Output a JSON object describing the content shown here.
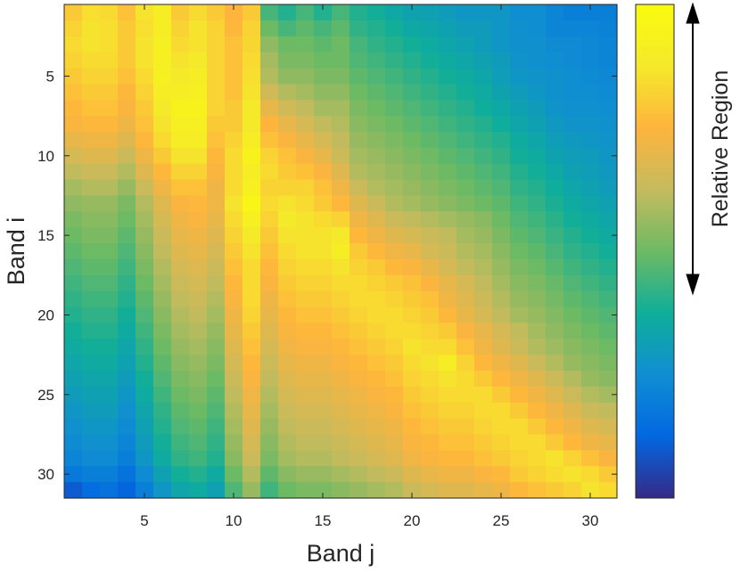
{
  "chart_data": {
    "type": "heatmap",
    "title": "",
    "xlabel": "Band j",
    "ylabel": "Band i",
    "rows": 31,
    "cols": 31,
    "x_ticks": [
      5,
      10,
      15,
      20,
      25,
      30
    ],
    "y_ticks": [
      5,
      10,
      15,
      20,
      25,
      30
    ],
    "colorbar_label": "Relative Region",
    "colorbar_ticks": "none",
    "colormap": "parula",
    "colormap_stops": [
      "#352a87",
      "#0268e1",
      "#108ed2",
      "#0fae99",
      "#6dba64",
      "#c4bb5e",
      "#feb43d",
      "#f5e92b",
      "#f9fb0e"
    ],
    "values_note_scale": "relative 0-1",
    "values": [
      [
        0.8,
        0.85,
        0.84,
        0.78,
        0.86,
        0.9,
        0.8,
        0.84,
        0.8,
        0.75,
        0.8,
        0.45,
        0.4,
        0.45,
        0.4,
        0.45,
        0.4,
        0.38,
        0.35,
        0.33,
        0.32,
        0.3,
        0.28,
        0.28,
        0.28,
        0.25,
        0.25,
        0.22,
        0.2,
        0.2,
        0.2
      ],
      [
        0.82,
        0.86,
        0.85,
        0.8,
        0.85,
        0.9,
        0.82,
        0.86,
        0.82,
        0.76,
        0.82,
        0.5,
        0.45,
        0.48,
        0.45,
        0.48,
        0.42,
        0.4,
        0.38,
        0.35,
        0.34,
        0.32,
        0.3,
        0.3,
        0.28,
        0.26,
        0.25,
        0.22,
        0.22,
        0.22,
        0.21
      ],
      [
        0.84,
        0.86,
        0.85,
        0.8,
        0.86,
        0.92,
        0.84,
        0.86,
        0.82,
        0.78,
        0.83,
        0.55,
        0.5,
        0.5,
        0.48,
        0.5,
        0.45,
        0.42,
        0.4,
        0.38,
        0.36,
        0.34,
        0.32,
        0.3,
        0.28,
        0.26,
        0.26,
        0.24,
        0.24,
        0.23,
        0.22
      ],
      [
        0.82,
        0.84,
        0.84,
        0.8,
        0.86,
        0.92,
        0.86,
        0.88,
        0.82,
        0.78,
        0.84,
        0.58,
        0.52,
        0.52,
        0.5,
        0.5,
        0.46,
        0.44,
        0.42,
        0.4,
        0.38,
        0.36,
        0.34,
        0.32,
        0.3,
        0.27,
        0.26,
        0.25,
        0.24,
        0.23,
        0.22
      ],
      [
        0.8,
        0.82,
        0.82,
        0.78,
        0.84,
        0.92,
        0.88,
        0.9,
        0.82,
        0.78,
        0.85,
        0.6,
        0.55,
        0.55,
        0.52,
        0.52,
        0.48,
        0.46,
        0.44,
        0.42,
        0.4,
        0.38,
        0.36,
        0.34,
        0.31,
        0.28,
        0.27,
        0.26,
        0.25,
        0.24,
        0.23
      ],
      [
        0.78,
        0.8,
        0.8,
        0.76,
        0.82,
        0.9,
        0.9,
        0.92,
        0.82,
        0.78,
        0.86,
        0.65,
        0.6,
        0.58,
        0.55,
        0.55,
        0.5,
        0.48,
        0.46,
        0.44,
        0.42,
        0.4,
        0.38,
        0.36,
        0.33,
        0.3,
        0.28,
        0.26,
        0.25,
        0.25,
        0.24
      ],
      [
        0.76,
        0.78,
        0.78,
        0.74,
        0.8,
        0.88,
        0.94,
        0.94,
        0.82,
        0.8,
        0.88,
        0.7,
        0.65,
        0.62,
        0.58,
        0.58,
        0.52,
        0.5,
        0.48,
        0.46,
        0.44,
        0.42,
        0.4,
        0.37,
        0.35,
        0.32,
        0.3,
        0.27,
        0.26,
        0.26,
        0.25
      ],
      [
        0.74,
        0.76,
        0.76,
        0.72,
        0.78,
        0.86,
        0.92,
        0.92,
        0.8,
        0.8,
        0.88,
        0.75,
        0.7,
        0.66,
        0.62,
        0.6,
        0.54,
        0.52,
        0.5,
        0.48,
        0.46,
        0.44,
        0.42,
        0.4,
        0.37,
        0.34,
        0.32,
        0.29,
        0.27,
        0.27,
        0.26
      ],
      [
        0.7,
        0.72,
        0.72,
        0.68,
        0.76,
        0.84,
        0.9,
        0.9,
        0.78,
        0.82,
        0.9,
        0.78,
        0.74,
        0.7,
        0.66,
        0.62,
        0.56,
        0.54,
        0.52,
        0.5,
        0.48,
        0.46,
        0.44,
        0.42,
        0.4,
        0.36,
        0.34,
        0.31,
        0.29,
        0.28,
        0.27
      ],
      [
        0.66,
        0.68,
        0.68,
        0.64,
        0.72,
        0.8,
        0.86,
        0.86,
        0.76,
        0.84,
        0.94,
        0.82,
        0.78,
        0.74,
        0.7,
        0.64,
        0.58,
        0.56,
        0.54,
        0.52,
        0.5,
        0.48,
        0.46,
        0.44,
        0.42,
        0.38,
        0.36,
        0.33,
        0.31,
        0.3,
        0.28
      ],
      [
        0.62,
        0.64,
        0.64,
        0.6,
        0.68,
        0.76,
        0.82,
        0.82,
        0.74,
        0.84,
        0.9,
        0.84,
        0.8,
        0.78,
        0.74,
        0.68,
        0.6,
        0.58,
        0.56,
        0.54,
        0.52,
        0.5,
        0.48,
        0.46,
        0.44,
        0.4,
        0.38,
        0.35,
        0.32,
        0.31,
        0.29
      ],
      [
        0.58,
        0.6,
        0.6,
        0.56,
        0.64,
        0.72,
        0.78,
        0.78,
        0.72,
        0.84,
        0.92,
        0.82,
        0.82,
        0.82,
        0.78,
        0.72,
        0.64,
        0.6,
        0.58,
        0.56,
        0.54,
        0.52,
        0.5,
        0.48,
        0.46,
        0.42,
        0.4,
        0.37,
        0.34,
        0.32,
        0.3
      ],
      [
        0.55,
        0.56,
        0.56,
        0.52,
        0.6,
        0.68,
        0.74,
        0.76,
        0.72,
        0.86,
        0.96,
        0.84,
        0.86,
        0.84,
        0.8,
        0.76,
        0.68,
        0.64,
        0.6,
        0.58,
        0.56,
        0.54,
        0.52,
        0.5,
        0.48,
        0.44,
        0.42,
        0.39,
        0.36,
        0.34,
        0.32
      ],
      [
        0.52,
        0.54,
        0.54,
        0.5,
        0.58,
        0.66,
        0.72,
        0.74,
        0.7,
        0.84,
        0.92,
        0.82,
        0.88,
        0.86,
        0.84,
        0.82,
        0.72,
        0.68,
        0.64,
        0.62,
        0.6,
        0.58,
        0.56,
        0.54,
        0.5,
        0.46,
        0.44,
        0.41,
        0.38,
        0.36,
        0.34
      ],
      [
        0.5,
        0.52,
        0.52,
        0.48,
        0.56,
        0.64,
        0.7,
        0.72,
        0.68,
        0.82,
        0.88,
        0.8,
        0.86,
        0.86,
        0.86,
        0.88,
        0.76,
        0.72,
        0.68,
        0.66,
        0.64,
        0.62,
        0.58,
        0.56,
        0.52,
        0.48,
        0.46,
        0.43,
        0.4,
        0.38,
        0.36
      ],
      [
        0.48,
        0.5,
        0.5,
        0.46,
        0.54,
        0.62,
        0.68,
        0.7,
        0.66,
        0.8,
        0.86,
        0.78,
        0.84,
        0.86,
        0.86,
        0.9,
        0.8,
        0.76,
        0.72,
        0.7,
        0.66,
        0.64,
        0.6,
        0.58,
        0.54,
        0.5,
        0.48,
        0.45,
        0.42,
        0.4,
        0.38
      ],
      [
        0.46,
        0.48,
        0.48,
        0.44,
        0.52,
        0.6,
        0.66,
        0.68,
        0.64,
        0.78,
        0.84,
        0.76,
        0.82,
        0.84,
        0.84,
        0.86,
        0.82,
        0.8,
        0.76,
        0.74,
        0.7,
        0.66,
        0.62,
        0.6,
        0.56,
        0.52,
        0.5,
        0.47,
        0.44,
        0.42,
        0.4
      ],
      [
        0.44,
        0.46,
        0.46,
        0.42,
        0.5,
        0.58,
        0.64,
        0.66,
        0.62,
        0.76,
        0.84,
        0.74,
        0.8,
        0.82,
        0.82,
        0.84,
        0.84,
        0.82,
        0.8,
        0.78,
        0.74,
        0.7,
        0.66,
        0.62,
        0.58,
        0.54,
        0.52,
        0.49,
        0.46,
        0.44,
        0.42
      ],
      [
        0.42,
        0.44,
        0.44,
        0.4,
        0.48,
        0.56,
        0.62,
        0.64,
        0.6,
        0.74,
        0.84,
        0.72,
        0.78,
        0.8,
        0.8,
        0.82,
        0.84,
        0.84,
        0.82,
        0.8,
        0.78,
        0.72,
        0.68,
        0.64,
        0.6,
        0.56,
        0.54,
        0.51,
        0.48,
        0.46,
        0.44
      ],
      [
        0.4,
        0.42,
        0.42,
        0.38,
        0.46,
        0.54,
        0.6,
        0.62,
        0.58,
        0.72,
        0.82,
        0.7,
        0.76,
        0.78,
        0.78,
        0.8,
        0.82,
        0.84,
        0.84,
        0.82,
        0.8,
        0.76,
        0.7,
        0.66,
        0.62,
        0.58,
        0.56,
        0.53,
        0.5,
        0.48,
        0.46
      ],
      [
        0.38,
        0.4,
        0.4,
        0.36,
        0.44,
        0.52,
        0.58,
        0.6,
        0.56,
        0.7,
        0.8,
        0.68,
        0.74,
        0.76,
        0.76,
        0.78,
        0.8,
        0.82,
        0.84,
        0.84,
        0.82,
        0.8,
        0.74,
        0.7,
        0.66,
        0.62,
        0.58,
        0.55,
        0.52,
        0.5,
        0.48
      ],
      [
        0.36,
        0.38,
        0.38,
        0.34,
        0.42,
        0.5,
        0.56,
        0.58,
        0.54,
        0.68,
        0.78,
        0.66,
        0.72,
        0.74,
        0.74,
        0.76,
        0.78,
        0.8,
        0.82,
        0.86,
        0.84,
        0.84,
        0.78,
        0.72,
        0.68,
        0.64,
        0.6,
        0.57,
        0.54,
        0.52,
        0.5
      ],
      [
        0.34,
        0.36,
        0.36,
        0.32,
        0.4,
        0.48,
        0.54,
        0.56,
        0.52,
        0.66,
        0.76,
        0.64,
        0.7,
        0.72,
        0.72,
        0.74,
        0.76,
        0.78,
        0.8,
        0.84,
        0.86,
        0.9,
        0.82,
        0.76,
        0.72,
        0.68,
        0.64,
        0.6,
        0.56,
        0.54,
        0.52
      ],
      [
        0.32,
        0.34,
        0.34,
        0.3,
        0.38,
        0.46,
        0.52,
        0.54,
        0.5,
        0.64,
        0.74,
        0.62,
        0.68,
        0.7,
        0.7,
        0.72,
        0.74,
        0.76,
        0.78,
        0.82,
        0.84,
        0.86,
        0.84,
        0.8,
        0.76,
        0.72,
        0.68,
        0.64,
        0.6,
        0.56,
        0.54
      ],
      [
        0.3,
        0.32,
        0.32,
        0.28,
        0.36,
        0.44,
        0.5,
        0.52,
        0.48,
        0.62,
        0.72,
        0.6,
        0.66,
        0.68,
        0.68,
        0.7,
        0.72,
        0.74,
        0.76,
        0.8,
        0.82,
        0.84,
        0.84,
        0.84,
        0.8,
        0.76,
        0.72,
        0.68,
        0.64,
        0.6,
        0.58
      ],
      [
        0.28,
        0.3,
        0.3,
        0.26,
        0.34,
        0.42,
        0.48,
        0.5,
        0.46,
        0.6,
        0.7,
        0.58,
        0.64,
        0.66,
        0.66,
        0.68,
        0.7,
        0.72,
        0.74,
        0.78,
        0.8,
        0.82,
        0.82,
        0.84,
        0.84,
        0.8,
        0.76,
        0.72,
        0.68,
        0.64,
        0.62
      ],
      [
        0.26,
        0.28,
        0.28,
        0.24,
        0.32,
        0.4,
        0.46,
        0.48,
        0.44,
        0.58,
        0.68,
        0.56,
        0.62,
        0.64,
        0.64,
        0.66,
        0.68,
        0.7,
        0.72,
        0.76,
        0.78,
        0.8,
        0.8,
        0.82,
        0.84,
        0.84,
        0.8,
        0.76,
        0.72,
        0.68,
        0.66
      ],
      [
        0.24,
        0.26,
        0.26,
        0.22,
        0.3,
        0.38,
        0.44,
        0.46,
        0.42,
        0.56,
        0.66,
        0.54,
        0.6,
        0.62,
        0.62,
        0.64,
        0.66,
        0.68,
        0.7,
        0.74,
        0.76,
        0.78,
        0.78,
        0.8,
        0.82,
        0.84,
        0.84,
        0.8,
        0.76,
        0.72,
        0.7
      ],
      [
        0.22,
        0.24,
        0.24,
        0.2,
        0.28,
        0.36,
        0.42,
        0.44,
        0.4,
        0.54,
        0.64,
        0.52,
        0.58,
        0.6,
        0.6,
        0.62,
        0.64,
        0.66,
        0.68,
        0.72,
        0.74,
        0.76,
        0.76,
        0.78,
        0.8,
        0.82,
        0.84,
        0.86,
        0.82,
        0.78,
        0.74
      ],
      [
        0.18,
        0.2,
        0.2,
        0.16,
        0.24,
        0.32,
        0.38,
        0.4,
        0.36,
        0.5,
        0.6,
        0.48,
        0.54,
        0.56,
        0.56,
        0.58,
        0.6,
        0.62,
        0.64,
        0.68,
        0.7,
        0.72,
        0.72,
        0.74,
        0.76,
        0.8,
        0.82,
        0.84,
        0.86,
        0.84,
        0.8
      ],
      [
        0.1,
        0.14,
        0.16,
        0.12,
        0.2,
        0.28,
        0.34,
        0.36,
        0.32,
        0.46,
        0.56,
        0.44,
        0.5,
        0.52,
        0.52,
        0.54,
        0.56,
        0.58,
        0.6,
        0.64,
        0.66,
        0.68,
        0.68,
        0.7,
        0.72,
        0.76,
        0.78,
        0.8,
        0.82,
        0.86,
        0.84
      ]
    ]
  }
}
